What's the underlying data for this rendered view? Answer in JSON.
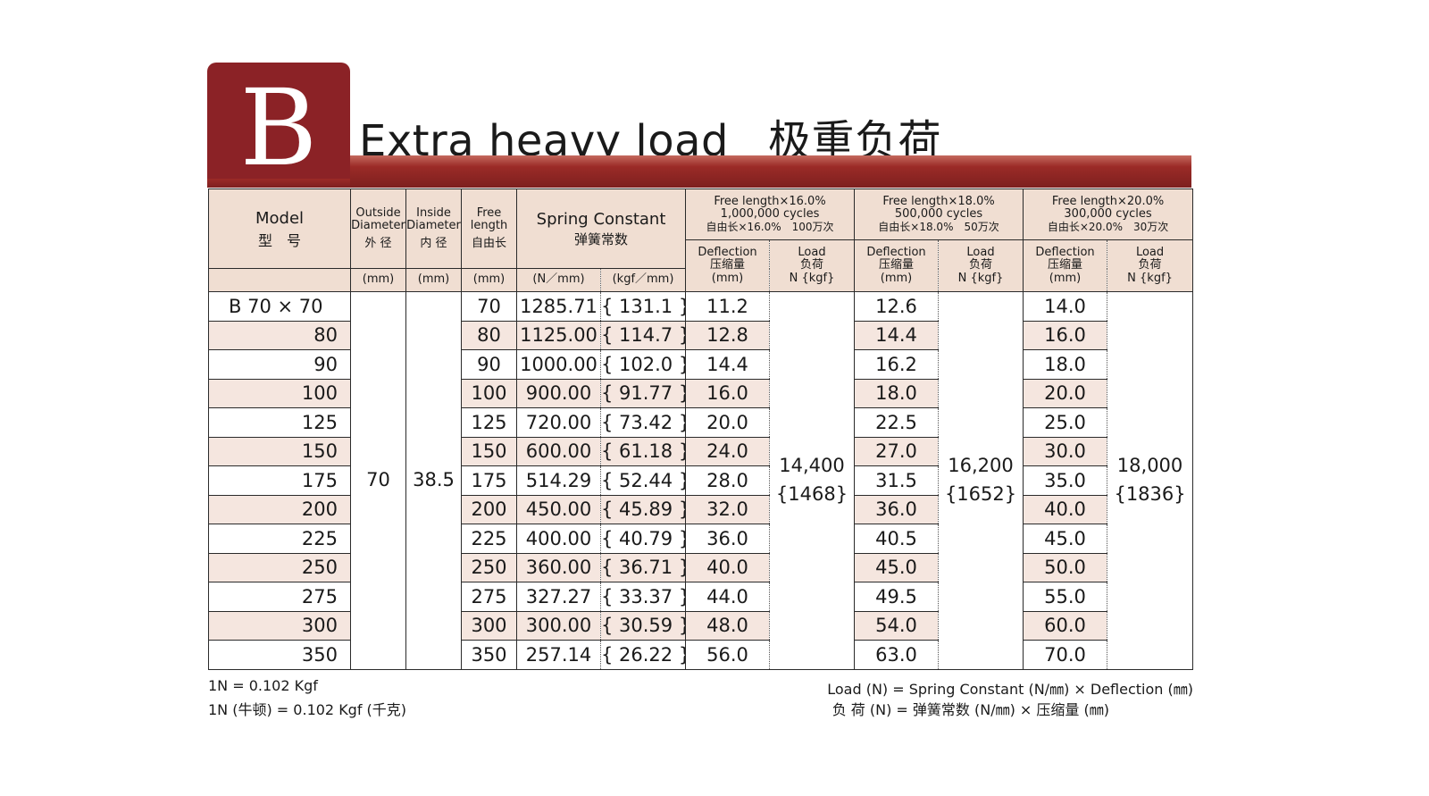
{
  "badge_letter": "B",
  "title_en": "Extra heavy load",
  "title_cn": "极重负荷",
  "headers": {
    "model": "Model",
    "model_cn": "型　号",
    "od": "Outside Diameter",
    "od_cn": "外 径",
    "od_unit": "(mm)",
    "id": "Inside Diameter",
    "id_cn": "内 径",
    "id_unit": "(mm)",
    "fl": "Free length",
    "fl_cn": "自由长",
    "fl_unit": "(mm)",
    "sc": "Spring Constant",
    "sc_cn": "弹簧常数",
    "sc_unit_n": "(N／mm)",
    "sc_unit_kgf": "(kgf／mm)",
    "g1_line1": "Free length×16.0%",
    "g1_line2": "1,000,000 cycles",
    "g1_line3": "自由长×16.0%　100万次",
    "g2_line1": "Free length×18.0%",
    "g2_line2": "500,000 cycles",
    "g2_line3": "自由长×18.0%　50万次",
    "g3_line1": "Free length×20.0%",
    "g3_line2": "300,000 cycles",
    "g3_line3": "自由长×20.0%　30万次",
    "defl": "Deflection",
    "defl_cn": "压缩量",
    "defl_unit": "(mm)",
    "load": "Load",
    "load_cn": "负荷",
    "load_unit": "N {kgf}"
  },
  "outside_diameter": "70",
  "inside_diameter": "38.5",
  "load1": "14,400",
  "load1_kgf": "{1468}",
  "load2": "16,200",
  "load2_kgf": "{1652}",
  "load3": "18,000",
  "load3_kgf": "{1836}",
  "rows": [
    {
      "model": "B  70 × 70",
      "fl": "70",
      "n": "1285.71",
      "kgf": "{ 131.1 }",
      "d1": "11.2",
      "d2": "12.6",
      "d3": "14.0"
    },
    {
      "model": "80",
      "fl": "80",
      "n": "1125.00",
      "kgf": "{ 114.7 }",
      "d1": "12.8",
      "d2": "14.4",
      "d3": "16.0"
    },
    {
      "model": "90",
      "fl": "90",
      "n": "1000.00",
      "kgf": "{ 102.0 }",
      "d1": "14.4",
      "d2": "16.2",
      "d3": "18.0"
    },
    {
      "model": "100",
      "fl": "100",
      "n": "900.00",
      "kgf": "{ 91.77 }",
      "d1": "16.0",
      "d2": "18.0",
      "d3": "20.0"
    },
    {
      "model": "125",
      "fl": "125",
      "n": "720.00",
      "kgf": "{ 73.42 }",
      "d1": "20.0",
      "d2": "22.5",
      "d3": "25.0"
    },
    {
      "model": "150",
      "fl": "150",
      "n": "600.00",
      "kgf": "{ 61.18 }",
      "d1": "24.0",
      "d2": "27.0",
      "d3": "30.0"
    },
    {
      "model": "175",
      "fl": "175",
      "n": "514.29",
      "kgf": "{ 52.44 }",
      "d1": "28.0",
      "d2": "31.5",
      "d3": "35.0"
    },
    {
      "model": "200",
      "fl": "200",
      "n": "450.00",
      "kgf": "{ 45.89 }",
      "d1": "32.0",
      "d2": "36.0",
      "d3": "40.0"
    },
    {
      "model": "225",
      "fl": "225",
      "n": "400.00",
      "kgf": "{ 40.79 }",
      "d1": "36.0",
      "d2": "40.5",
      "d3": "45.0"
    },
    {
      "model": "250",
      "fl": "250",
      "n": "360.00",
      "kgf": "{ 36.71 }",
      "d1": "40.0",
      "d2": "45.0",
      "d3": "50.0"
    },
    {
      "model": "275",
      "fl": "275",
      "n": "327.27",
      "kgf": "{ 33.37 }",
      "d1": "44.0",
      "d2": "49.5",
      "d3": "55.0"
    },
    {
      "model": "300",
      "fl": "300",
      "n": "300.00",
      "kgf": "{ 30.59 }",
      "d1": "48.0",
      "d2": "54.0",
      "d3": "60.0"
    },
    {
      "model": "350",
      "fl": "350",
      "n": "257.14",
      "kgf": "{ 26.22 }",
      "d1": "56.0",
      "d2": "63.0",
      "d3": "70.0"
    }
  ],
  "notes": {
    "left1": "1N = 0.102 Kgf",
    "left2": "1N (牛顿) = 0.102 Kgf (千克)",
    "right1": "Load (N) = Spring Constant (N/㎜) × Deflection (㎜)",
    "right2": "负 荷 (N) = 弹簧常数 (N/㎜) × 压缩量 (㎜)"
  },
  "colors": {
    "accent": "#8b2226",
    "header_bg": "#f0ded2",
    "row_shade": "#f5e6df"
  }
}
